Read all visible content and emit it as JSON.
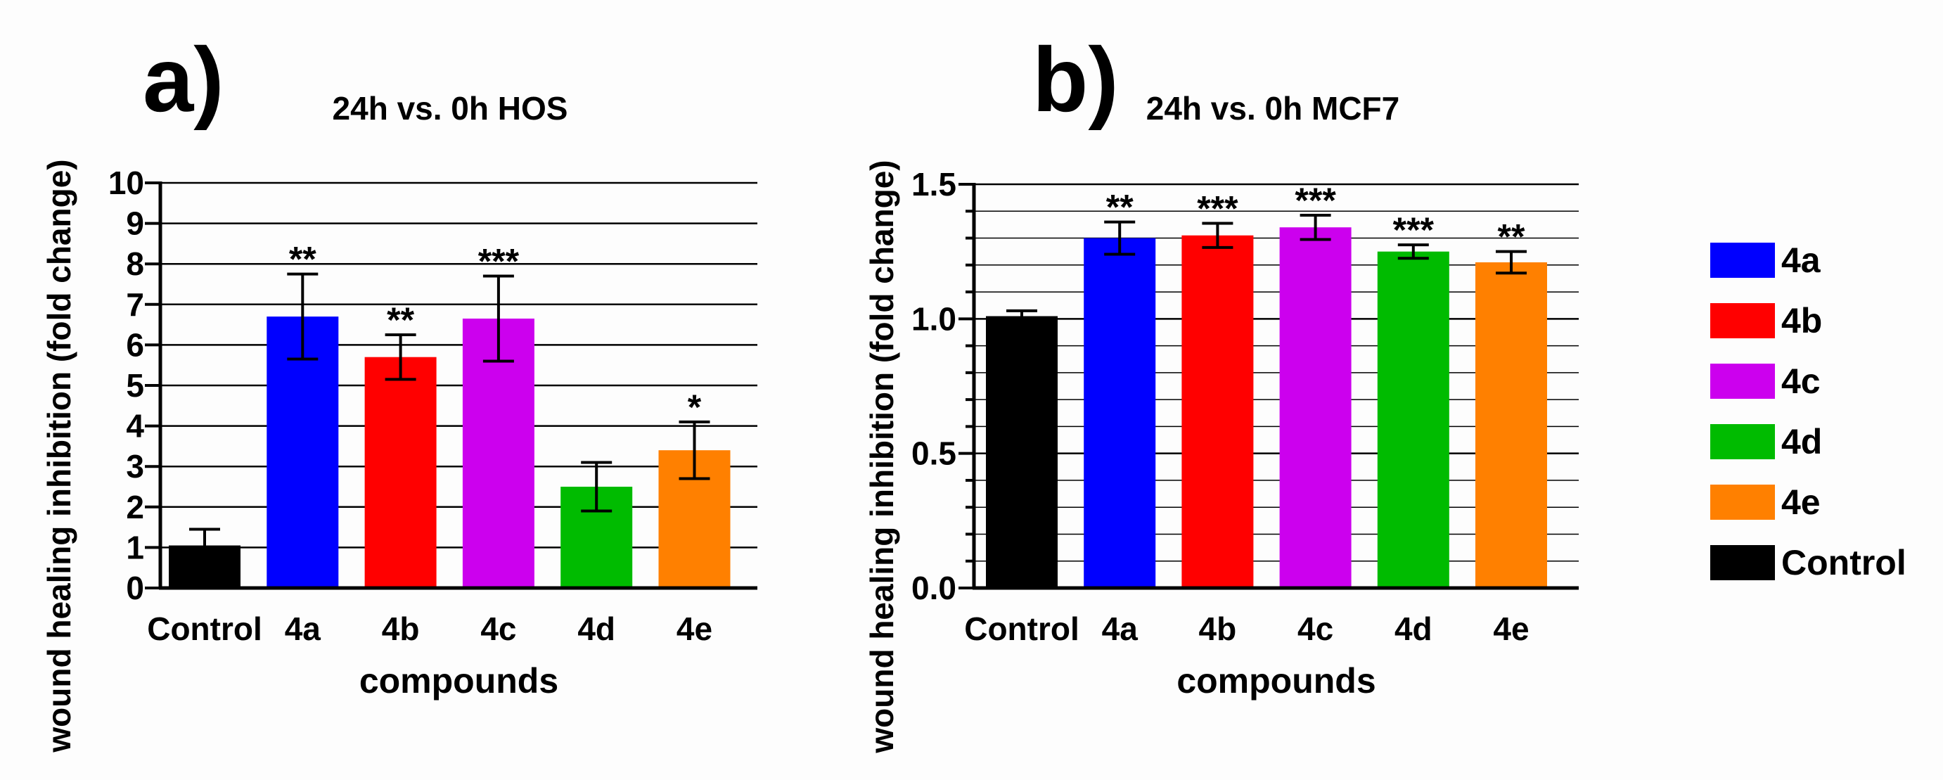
{
  "colors": {
    "Control": "#000000",
    "4a": "#0000ff",
    "4b": "#ff0000",
    "4c": "#cc00ee",
    "4d": "#00bb00",
    "4e": "#ff8000",
    "axis": "#000000",
    "grid": "#000000"
  },
  "chart_data": [
    {
      "panel_label": "a)",
      "type": "bar",
      "title": "24h vs. 0h HOS",
      "xlabel": "compounds",
      "ylabel": "wound healing inhibition (fold change)",
      "ylim": [
        0,
        10
      ],
      "yticks": [
        "0",
        "1",
        "2",
        "3",
        "4",
        "5",
        "6",
        "7",
        "8",
        "9",
        "10"
      ],
      "grid": "horizontal",
      "categories": [
        "Control",
        "4a",
        "4b",
        "4c",
        "4d",
        "4e"
      ],
      "values": [
        1.05,
        6.7,
        5.7,
        6.65,
        2.5,
        3.4
      ],
      "errors": [
        0.4,
        1.05,
        0.55,
        1.05,
        0.6,
        0.7
      ],
      "significance": [
        "",
        "**",
        "**",
        "***",
        "",
        "*"
      ]
    },
    {
      "panel_label": "b)",
      "type": "bar",
      "title": "24h vs. 0h MCF7",
      "xlabel": "compounds",
      "ylabel": "wound healing inhibition (fold change)",
      "ylim": [
        0,
        1.5
      ],
      "yticks": [
        "0.0",
        "0.5",
        "1.0",
        "1.5"
      ],
      "grid": "horizontal",
      "categories": [
        "Control",
        "4a",
        "4b",
        "4c",
        "4d",
        "4e"
      ],
      "values": [
        1.01,
        1.3,
        1.31,
        1.34,
        1.25,
        1.21
      ],
      "errors": [
        0.02,
        0.06,
        0.045,
        0.045,
        0.025,
        0.04
      ],
      "significance": [
        "",
        "**",
        "***",
        "***",
        "***",
        "**"
      ]
    }
  ],
  "legend": {
    "position": "right",
    "items": [
      {
        "label": "4a",
        "key": "4a"
      },
      {
        "label": "4b",
        "key": "4b"
      },
      {
        "label": "4c",
        "key": "4c"
      },
      {
        "label": "4d",
        "key": "4d"
      },
      {
        "label": "4e",
        "key": "4e"
      },
      {
        "label": "Control",
        "key": "Control"
      }
    ]
  }
}
